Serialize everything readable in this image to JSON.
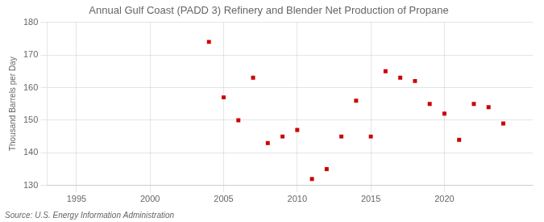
{
  "chart_data": {
    "type": "scatter",
    "title": "Annual Gulf Coast (PADD 3) Refinery and Blender Net Production of Propane",
    "y_label": "Thousand Barrels per Day",
    "annotation": "Source: U.S. Energy Information Administration",
    "x": [
      2004,
      2005,
      2006,
      2007,
      2008,
      2009,
      2010,
      2011,
      2012,
      2013,
      2014,
      2015,
      2016,
      2017,
      2018,
      2019,
      2020,
      2021,
      2022,
      2023,
      2024
    ],
    "values": [
      174,
      157,
      150,
      163,
      143,
      145,
      147,
      132,
      135,
      145,
      156,
      145,
      165,
      163,
      162,
      155,
      152,
      144,
      155,
      154,
      149
    ],
    "color": "#cc0000",
    "marker": "square",
    "xlim": [
      1993,
      2026
    ],
    "ylim": [
      130,
      180
    ],
    "xticks": [
      1995,
      2000,
      2005,
      2010,
      2015,
      2020
    ],
    "yticks": [
      130,
      140,
      150,
      160,
      170,
      180
    ],
    "grid": true
  }
}
